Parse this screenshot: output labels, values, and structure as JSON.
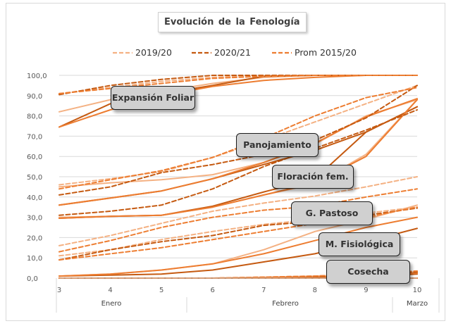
{
  "chart_data": {
    "type": "line",
    "title": "Evolución de la Fenología",
    "x": [
      3,
      4,
      5,
      6,
      7,
      8,
      9,
      10
    ],
    "x_tick_labels": [
      "3",
      "4",
      "5",
      "6",
      "7",
      "8",
      "9",
      "10"
    ],
    "month_labels": [
      "Enero",
      "Febrero",
      "Marzo"
    ],
    "ylim": [
      0,
      100
    ],
    "y_ticks": [
      0,
      10,
      20,
      30,
      40,
      50,
      60,
      70,
      80,
      90,
      100
    ],
    "y_tick_labels": [
      "0,0",
      "10,0",
      "20,0",
      "30,0",
      "40,0",
      "50,0",
      "60,0",
      "70,0",
      "80,0",
      "90,0",
      "100,0"
    ],
    "legend": [
      {
        "name": "2019/20",
        "color": "#f4b183"
      },
      {
        "name": "2020/21",
        "color": "#c55a11"
      },
      {
        "name": "Prom 2015/20",
        "color": "#ed7d31"
      }
    ],
    "stages": [
      {
        "name": "Expansión Foliar",
        "series": [
          {
            "name": "2019/20",
            "style": "solid",
            "color": "#f4b183",
            "values": [
              82,
              88,
              92,
              96,
              99,
              100,
              100,
              100
            ]
          },
          {
            "name": "2020/21",
            "style": "solid",
            "color": "#c55a11",
            "values": [
              74.5,
              86,
              91,
              95,
              99.5,
              100,
              100,
              100
            ]
          },
          {
            "name": "Prom 2015/20",
            "style": "solid",
            "color": "#ed7d31",
            "values": [
              74.5,
              83,
              90,
              94.5,
              97.5,
              99,
              100,
              100
            ]
          },
          {
            "name": "2019/20",
            "style": "dashed",
            "color": "#f4b183",
            "values": [
              91,
              94,
              97,
              99,
              100,
              100,
              100,
              100
            ]
          },
          {
            "name": "2020/21",
            "style": "dashed",
            "color": "#c55a11",
            "values": [
              90.5,
              95,
              98,
              100,
              100,
              100,
              100,
              100
            ]
          },
          {
            "name": "Prom 2015/20",
            "style": "dashed",
            "color": "#ed7d31",
            "values": [
              91,
              93.5,
              96,
              98.5,
              99.5,
              100,
              100,
              100
            ]
          }
        ]
      },
      {
        "name": "Panojamiento",
        "series": [
          {
            "name": "2019/20",
            "style": "solid",
            "color": "#f4b183",
            "values": [
              45,
              47,
              48.5,
              51,
              57,
              66,
              80,
              88
            ]
          },
          {
            "name": "2020/21",
            "style": "solid",
            "color": "#c55a11",
            "values": [
              36,
              39.5,
              43,
              49,
              56,
              63,
              72,
              84.5
            ]
          },
          {
            "name": "Prom 2015/20",
            "style": "solid",
            "color": "#ed7d31",
            "values": [
              36,
              39.5,
              43,
              49,
              57,
              66.5,
              79.5,
              88.5
            ]
          },
          {
            "name": "2019/20",
            "style": "dashed",
            "color": "#f4b183",
            "values": [
              46,
              49,
              52.5,
              59.5,
              68,
              77,
              86,
              95
            ]
          },
          {
            "name": "2020/21",
            "style": "dashed",
            "color": "#c55a11",
            "values": [
              41,
              45,
              52,
              56,
              61,
              68,
              79,
              95
            ]
          },
          {
            "name": "Prom 2015/20",
            "style": "dashed",
            "color": "#ed7d31",
            "values": [
              44,
              48.5,
              53,
              59.5,
              69,
              80,
              89,
              94
            ]
          }
        ]
      },
      {
        "name": "Floración fem.",
        "series": [
          {
            "name": "2019/20",
            "style": "solid",
            "color": "#f4b183",
            "values": [
              30,
              30.5,
              31,
              35,
              41,
              46.5,
              61,
              88
            ]
          },
          {
            "name": "2020/21",
            "style": "solid",
            "color": "#c55a11",
            "values": [
              29.5,
              30.5,
              31,
              35.5,
              42.5,
              49,
              72,
              84.5
            ]
          },
          {
            "name": "Prom 2015/20",
            "style": "solid",
            "color": "#ed7d31",
            "values": [
              29.5,
              30.5,
              31,
              35,
              41,
              47,
              60,
              88
            ]
          },
          {
            "name": "2019/20",
            "style": "dashed",
            "color": "#f4b183",
            "values": [
              16,
              21,
              27,
              33,
              37,
              40.5,
              45,
              50
            ]
          },
          {
            "name": "2020/21",
            "style": "dashed",
            "color": "#c55a11",
            "values": [
              31,
              33,
              36,
              44,
              55,
              64,
              73,
              83
            ]
          },
          {
            "name": "Prom 2015/20",
            "style": "dashed",
            "color": "#ed7d31",
            "values": [
              13,
              18.5,
              25,
              30,
              33.5,
              35.5,
              40,
              44
            ]
          }
        ]
      },
      {
        "name": "G. Pastoso",
        "series": [
          {
            "name": "2019/20",
            "style": "solid",
            "color": "#f4b183",
            "values": [
              1,
              2,
              4,
              7,
              14,
              23,
              29,
              36
            ]
          },
          {
            "name": "2020/21",
            "style": "solid",
            "color": "#c55a11",
            "values": [
              1,
              1.5,
              2,
              4,
              8,
              12,
              18,
              24.5
            ]
          },
          {
            "name": "Prom 2015/20",
            "style": "solid",
            "color": "#ed7d31",
            "values": [
              1,
              2,
              4,
              7,
              12,
              18.5,
              25,
              30
            ]
          },
          {
            "name": "2019/20",
            "style": "dashed",
            "color": "#f4b183",
            "values": [
              11,
              14,
              19,
              23,
              26.5,
              29,
              32,
              35
            ]
          },
          {
            "name": "2020/21",
            "style": "dashed",
            "color": "#c55a11",
            "values": [
              9,
              14,
              18,
              21,
              26,
              28,
              31,
              34.5
            ]
          },
          {
            "name": "Prom 2015/20",
            "style": "dashed",
            "color": "#ed7d31",
            "values": [
              9,
              12,
              15,
              19,
              23,
              27,
              30,
              35
            ]
          }
        ]
      },
      {
        "name": "M. Fisiológica",
        "series": [
          {
            "name": "2019/20",
            "style": "solid",
            "color": "#f4b183",
            "values": [
              0,
              0,
              0,
              0,
              0.5,
              1,
              2,
              3
            ]
          },
          {
            "name": "2020/21",
            "style": "solid",
            "color": "#c55a11",
            "values": [
              0,
              0,
              0,
              0,
              0,
              0.5,
              1,
              2
            ]
          },
          {
            "name": "Prom 2015/20",
            "style": "solid",
            "color": "#ed7d31",
            "values": [
              0,
              0,
              0,
              0,
              0,
              0.5,
              1.5,
              2.5
            ]
          },
          {
            "name": "2019/20",
            "style": "dashed",
            "color": "#f4b183",
            "values": [
              0,
              0,
              0,
              0,
              0.5,
              1,
              2,
              3
            ]
          },
          {
            "name": "2020/21",
            "style": "dashed",
            "color": "#c55a11",
            "values": [
              0,
              0,
              0,
              0,
              0,
              0.5,
              1.5,
              3
            ]
          },
          {
            "name": "Prom 2015/20",
            "style": "dashed",
            "color": "#ed7d31",
            "values": [
              0,
              0,
              0,
              0,
              0.5,
              1,
              2,
              3.5
            ]
          }
        ]
      },
      {
        "name": "Cosecha",
        "series": [
          {
            "name": "2019/20",
            "style": "solid",
            "color": "#f4b183",
            "values": [
              0,
              0,
              0,
              0,
              0,
              0,
              0,
              0
            ]
          },
          {
            "name": "2020/21",
            "style": "solid",
            "color": "#c55a11",
            "values": [
              0,
              0,
              0,
              0,
              0,
              0,
              0,
              0
            ]
          },
          {
            "name": "Prom 2015/20",
            "style": "dashed",
            "color": "#ed7d31",
            "values": [
              0,
              0,
              0,
              0,
              0,
              0,
              0,
              0
            ]
          }
        ]
      }
    ]
  }
}
